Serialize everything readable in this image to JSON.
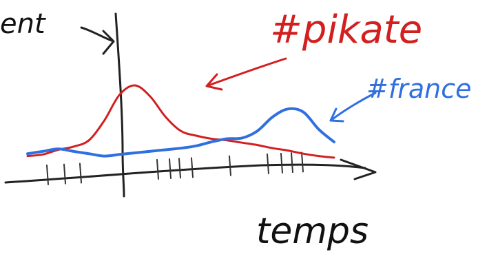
{
  "chart_data": {
    "type": "line",
    "title": "",
    "xlabel": "temps",
    "ylabel": "ent",
    "x": [
      0,
      1,
      2,
      3,
      4,
      5,
      6,
      7,
      8,
      9,
      10,
      11,
      12,
      13,
      14,
      15,
      16,
      17,
      18,
      19,
      20
    ],
    "series": [
      {
        "name": "#pikate",
        "color": "#d21f1f",
        "values": [
          1,
          1.2,
          1.8,
          2.2,
          3.0,
          5.5,
          8.8,
          10.0,
          8.6,
          6.0,
          4.2,
          3.6,
          3.2,
          3.0,
          2.7,
          2.4,
          2.0,
          1.7,
          1.3,
          1.0,
          0.8
        ]
      },
      {
        "name": "#france",
        "color": "#2f6fe0",
        "values": [
          1.3,
          1.6,
          1.9,
          1.6,
          1.3,
          1.0,
          1.2,
          1.4,
          1.6,
          1.8,
          2.0,
          2.3,
          2.8,
          3.2,
          3.3,
          4.2,
          6.0,
          7.0,
          6.6,
          4.4,
          2.8
        ]
      }
    ],
    "axis": {
      "has_grid": false,
      "x_ticks_unlabeled": true
    }
  }
}
